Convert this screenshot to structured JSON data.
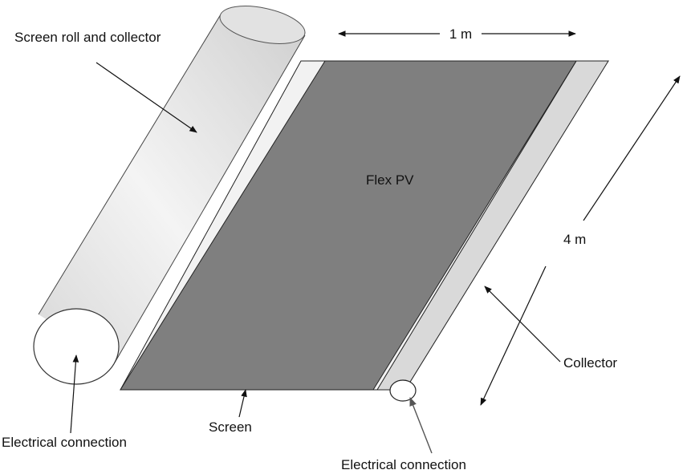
{
  "labels": {
    "screen_roll": "Screen roll and collector",
    "width": "1 m",
    "flex_pv": "Flex PV",
    "length": "4 m",
    "collector": "Collector",
    "screen": "Screen",
    "elec_left": "Electrical connection",
    "elec_right": "Electrical connection"
  },
  "colors": {
    "pv": "#7f7f7f",
    "screen_sheet": "#f2f2f2",
    "collector_strip": "#d9d9d9",
    "roll": "#e6e6e6",
    "outline": "#222222"
  }
}
